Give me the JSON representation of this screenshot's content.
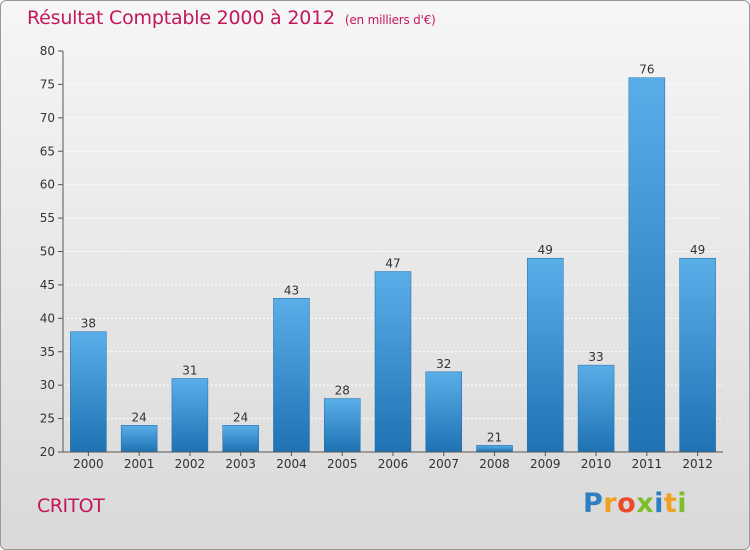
{
  "title": "Résultat Comptable 2000 à 2012",
  "subtitle": "(en milliers d'€)",
  "commune": "CRITOT",
  "logo": {
    "letters": [
      {
        "ch": "P",
        "color": "#2e7fc1"
      },
      {
        "ch": "r",
        "color": "#f0a020"
      },
      {
        "ch": "o",
        "color": "#e94b2b"
      },
      {
        "ch": "x",
        "color": "#7cbf2a"
      },
      {
        "ch": "i",
        "color": "#2e7fc1"
      },
      {
        "ch": "t",
        "color": "#f0a020"
      },
      {
        "ch": "i",
        "color": "#7cbf2a"
      }
    ]
  },
  "colors": {
    "title": "#c2185b",
    "bar_top": "#5aaee8",
    "bar_bottom": "#1f72b3",
    "grid": "#ffffff",
    "axis": "#555555"
  },
  "chart_data": {
    "type": "bar",
    "title": "Résultat Comptable 2000 à 2012",
    "subtitle": "(en milliers d'€)",
    "xlabel": "",
    "ylabel": "",
    "categories": [
      "2000",
      "2001",
      "2002",
      "2003",
      "2004",
      "2005",
      "2006",
      "2007",
      "2008",
      "2009",
      "2010",
      "2011",
      "2012"
    ],
    "values": [
      38,
      24,
      31,
      24,
      43,
      28,
      47,
      32,
      21,
      49,
      33,
      76,
      49
    ],
    "ylim": [
      20,
      80
    ],
    "yticks": [
      20,
      25,
      30,
      35,
      40,
      45,
      50,
      55,
      60,
      65,
      70,
      75,
      80
    ],
    "grid": true
  }
}
